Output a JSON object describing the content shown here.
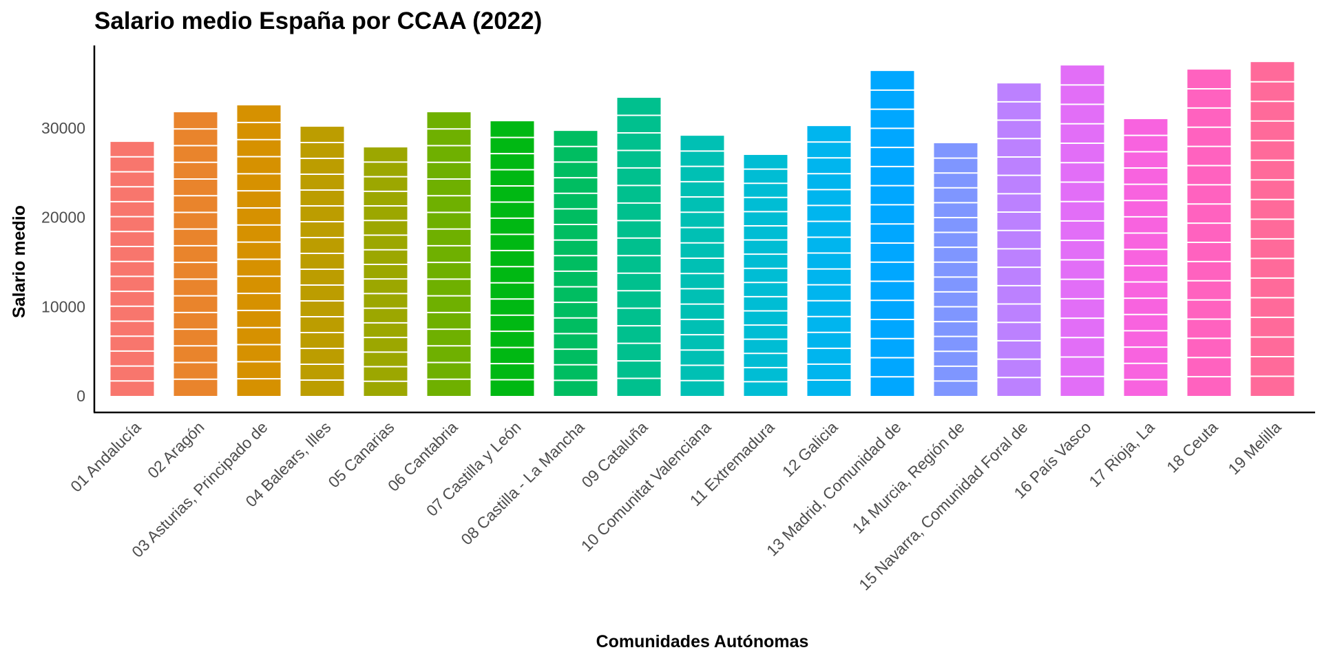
{
  "chart_data": {
    "type": "bar",
    "title": "Salario medio España por CCAA (2022)",
    "xlabel": "Comunidades Autónomas",
    "ylabel": "Salario medio",
    "ylim": [
      0,
      38500
    ],
    "yticks": [
      0,
      10000,
      20000,
      30000
    ],
    "ytick_labels": [
      "0",
      "10000",
      "20000",
      "30000"
    ],
    "grid": false,
    "legend": "none",
    "stacked_segments_per_bar": 17,
    "categories": [
      "01 Andalucía",
      "02 Aragón",
      "03 Asturias, Principado de",
      "04 Balears, Illes",
      "05 Canarias",
      "06 Cantabria",
      "07 Castilla y León",
      "08 Castilla - La Mancha",
      "09 Cataluña",
      "10 Comunitat Valenciana",
      "11 Extremadura",
      "12 Galicia",
      "13 Madrid, Comunidad de",
      "14 Murcia, Región de",
      "15 Navarra, Comunidad Foral de",
      "16 País Vasco",
      "17 Rioja, La",
      "18 Ceuta",
      "19 Melilla"
    ],
    "values": [
      28450,
      31770,
      32540,
      30150,
      27830,
      31770,
      30760,
      29680,
      33390,
      29140,
      26990,
      30220,
      36390,
      28300,
      35000,
      37010,
      31000,
      36550,
      37390
    ],
    "colors": [
      "#F8766D",
      "#E9842C",
      "#D69100",
      "#BC9D00",
      "#9CA700",
      "#6FB000",
      "#00B813",
      "#00BD61",
      "#00C08E",
      "#00C0B4",
      "#00BDD4",
      "#00B5EE",
      "#00A7FF",
      "#7F96FF",
      "#BC81FF",
      "#E26EF7",
      "#F863DF",
      "#FF62BF",
      "#FF6A9A"
    ]
  }
}
